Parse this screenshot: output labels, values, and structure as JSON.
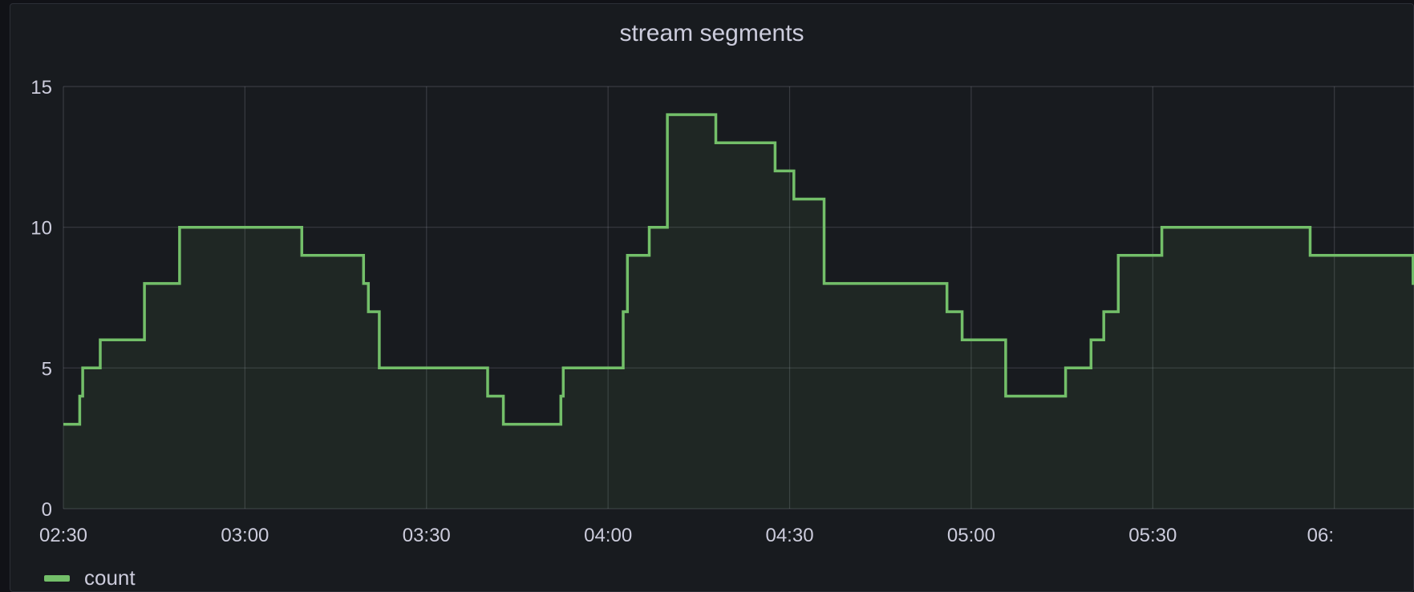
{
  "chart_data": {
    "type": "line",
    "title": "stream segments",
    "xlabel": "",
    "ylabel": "",
    "ylim": [
      0,
      15
    ],
    "yticks": [
      0,
      5,
      10,
      15
    ],
    "xlim": [
      0,
      210
    ],
    "xticks": [
      {
        "x": 0,
        "label": "02:30"
      },
      {
        "x": 30,
        "label": "03:00"
      },
      {
        "x": 60,
        "label": "03:30"
      },
      {
        "x": 90,
        "label": "04:00"
      },
      {
        "x": 120,
        "label": "04:30"
      },
      {
        "x": 150,
        "label": "05:00"
      },
      {
        "x": 180,
        "label": "05:30"
      },
      {
        "x": 210,
        "label": "06:"
      }
    ],
    "grid": true,
    "step": true,
    "legend_position": "bottom-left",
    "series": [
      {
        "name": "count",
        "color": "#73bf69",
        "x": [
          0,
          2.7,
          3.2,
          6.1,
          13.4,
          19.2,
          39.4,
          49.6,
          50.4,
          52.2,
          70.1,
          72.7,
          82.2,
          82.6,
          92.5,
          93.2,
          96.8,
          99.8,
          107.8,
          117.6,
          120.7,
          125.7,
          126.1,
          146.0,
          148.5,
          155.7,
          165.6,
          169.8,
          171.9,
          174.3,
          181.5,
          206.0,
          223.0
        ],
        "values": [
          3,
          4,
          5,
          6,
          8,
          10,
          9,
          8,
          7,
          5,
          4,
          3,
          4,
          5,
          7,
          9,
          10,
          14,
          13,
          12,
          11,
          8,
          8,
          7,
          6,
          4,
          5,
          6,
          7,
          9,
          10,
          9,
          8
        ]
      }
    ]
  }
}
